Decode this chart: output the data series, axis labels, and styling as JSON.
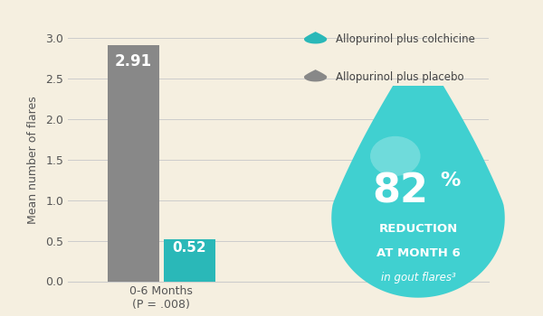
{
  "categories": [
    "0-6 Months\n(P = .008)"
  ],
  "placebo_value": 2.91,
  "colchicine_value": 0.52,
  "bar_color_placebo": "#888888",
  "bar_color_colchicine": "#2ab8b8",
  "bar_label_color": "white",
  "ylim": [
    0,
    3.0
  ],
  "yticks": [
    0,
    0.5,
    1.0,
    1.5,
    2.0,
    2.5,
    3.0
  ],
  "ylabel": "Mean number of flares",
  "background_color": "#f5efe0",
  "legend_label_colchicine": "Allopurinol plus colchicine",
  "legend_label_placebo": "Allopurinol plus placebo",
  "legend_color_colchicine": "#2ab8b8",
  "legend_color_placebo": "#888888",
  "drop_text_big": "82",
  "drop_text_pct": "%",
  "drop_text_line1": "REDUCTION",
  "drop_text_line2": "AT MONTH 6",
  "drop_text_line3": "in gout flares³",
  "drop_color_top": "#40d0d0",
  "drop_color_bottom": "#1a9999",
  "drop_text_color": "white",
  "grid_color": "#cccccc",
  "tick_color": "#555555",
  "spine_color": "#cccccc"
}
